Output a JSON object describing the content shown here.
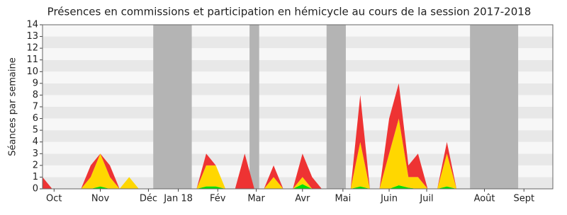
{
  "chart_data": {
    "type": "area",
    "title": "Présences en commissions et participation en hémicycle au cours de la session 2017-2018",
    "y_label": "Séances par semaine",
    "x": [
      0,
      1,
      2,
      3,
      4,
      5,
      6,
      7,
      8,
      9,
      10,
      11,
      12,
      13,
      14,
      15,
      16,
      17,
      18,
      19,
      20,
      21,
      22,
      23,
      24,
      25,
      26,
      27,
      28,
      29,
      30,
      31,
      32,
      33,
      34,
      35,
      36,
      37,
      38,
      39,
      40,
      41,
      42,
      43,
      44,
      45,
      46,
      47,
      48,
      49,
      50,
      51,
      52
    ],
    "series": [
      {
        "color": "#00e000",
        "values": [
          0,
          0,
          0,
          0,
          0,
          0,
          0.2,
          0,
          0,
          0,
          0,
          0,
          0,
          0,
          0,
          0,
          0,
          0.2,
          0.2,
          0,
          0,
          0,
          0,
          0,
          0,
          0,
          0,
          0.4,
          0,
          0,
          0,
          0,
          0,
          0.2,
          0,
          0,
          0,
          0.3,
          0.1,
          0,
          0,
          0,
          0.2,
          0,
          0,
          0,
          0,
          0,
          0,
          0,
          0,
          0,
          0
        ]
      },
      {
        "color": "#ffd700",
        "values": [
          0,
          0,
          0,
          0,
          0,
          1,
          2.8,
          1,
          0,
          1,
          0,
          0,
          0,
          0,
          0,
          0,
          0,
          1.8,
          1.8,
          0,
          0,
          0,
          0,
          0,
          1,
          0,
          0,
          0.6,
          0,
          0,
          0,
          0,
          0,
          3.8,
          0,
          0,
          3,
          5.7,
          0.9,
          1,
          0,
          0,
          2.8,
          0,
          0,
          0,
          0,
          0,
          0,
          0,
          0,
          0,
          0
        ]
      },
      {
        "color": "#ee3333",
        "values": [
          1,
          0,
          0,
          0,
          0,
          1,
          0,
          1,
          0,
          0,
          0,
          0,
          0,
          0,
          0,
          0,
          0,
          1,
          0,
          0,
          0,
          3,
          0,
          0,
          1,
          0,
          0,
          2,
          1,
          0,
          0,
          0,
          0,
          4,
          0,
          0,
          3,
          3,
          1,
          2,
          0,
          0,
          1,
          0,
          0,
          0,
          0,
          0,
          0,
          0,
          0,
          0,
          0
        ]
      }
    ],
    "shaded_ranges": [
      [
        11.5,
        15.5
      ],
      [
        21.5,
        22.5
      ],
      [
        29.5,
        31.5
      ],
      [
        44.4,
        49.4
      ]
    ],
    "shade_color": "#b4b4b4",
    "xlim": [
      0,
      53
    ],
    "xticks": [
      {
        "value": 1.2,
        "label": "Oct"
      },
      {
        "value": 6,
        "label": "Nov"
      },
      {
        "value": 11,
        "label": "Déc"
      },
      {
        "value": 14.1,
        "label": "Jan 18"
      },
      {
        "value": 18.2,
        "label": "Fév"
      },
      {
        "value": 22.2,
        "label": "Mar"
      },
      {
        "value": 27,
        "label": "Avr"
      },
      {
        "value": 31.2,
        "label": "Mai"
      },
      {
        "value": 36,
        "label": "Juin"
      },
      {
        "value": 39.9,
        "label": "Juil"
      },
      {
        "value": 45.9,
        "label": "Août"
      },
      {
        "value": 50,
        "label": "Sept"
      }
    ],
    "ylim": [
      0,
      14
    ],
    "yticks": [
      0,
      1,
      2,
      3,
      4,
      5,
      6,
      7,
      8,
      9,
      10,
      11,
      12,
      13,
      14
    ],
    "grid": true
  }
}
